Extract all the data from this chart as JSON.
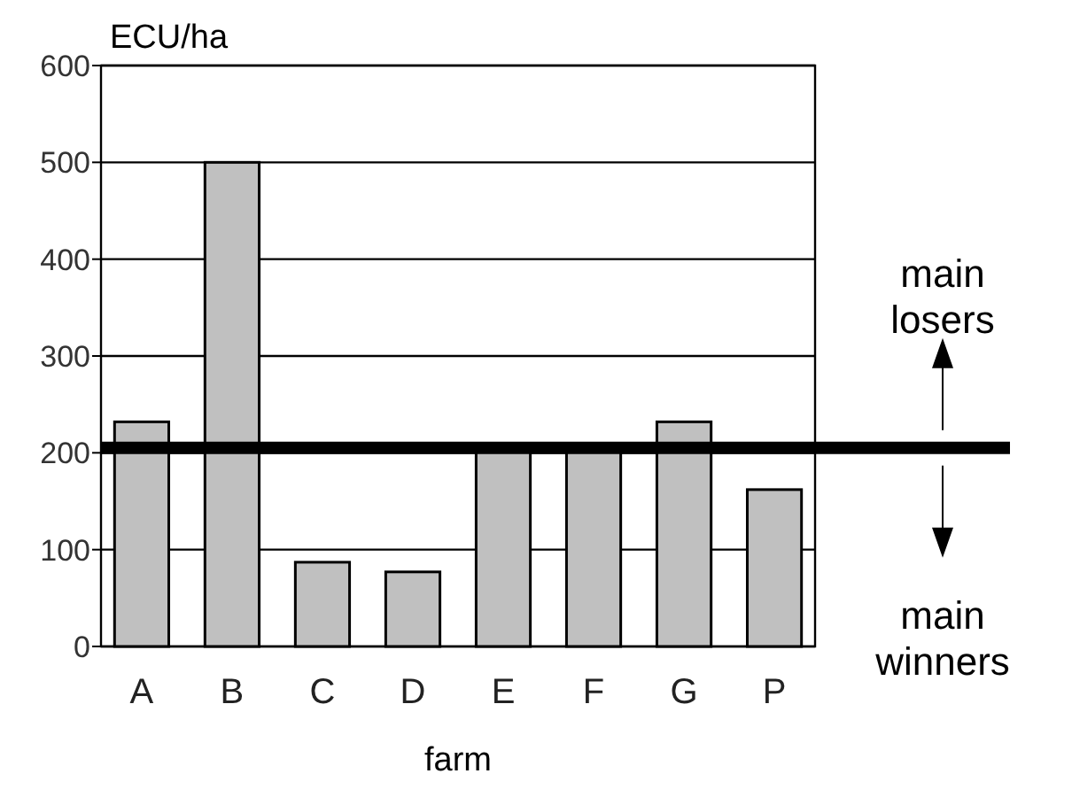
{
  "chart_data": {
    "type": "bar",
    "ylabel": "ECU/ha",
    "xlabel": "farm",
    "categories": [
      "A",
      "B",
      "C",
      "D",
      "E",
      "F",
      "G",
      "P"
    ],
    "values": [
      232,
      500,
      87,
      77,
      205,
      205,
      232,
      162
    ],
    "color": "#c0c0c0",
    "ylim": [
      0,
      600
    ],
    "yticks": [
      0,
      100,
      200,
      300,
      400,
      500,
      600
    ],
    "grid": "y",
    "ref_lines": [
      {
        "axis": "y",
        "value": 205,
        "color": "#000000"
      }
    ],
    "annotations": [
      "main losers",
      "main winners"
    ]
  }
}
